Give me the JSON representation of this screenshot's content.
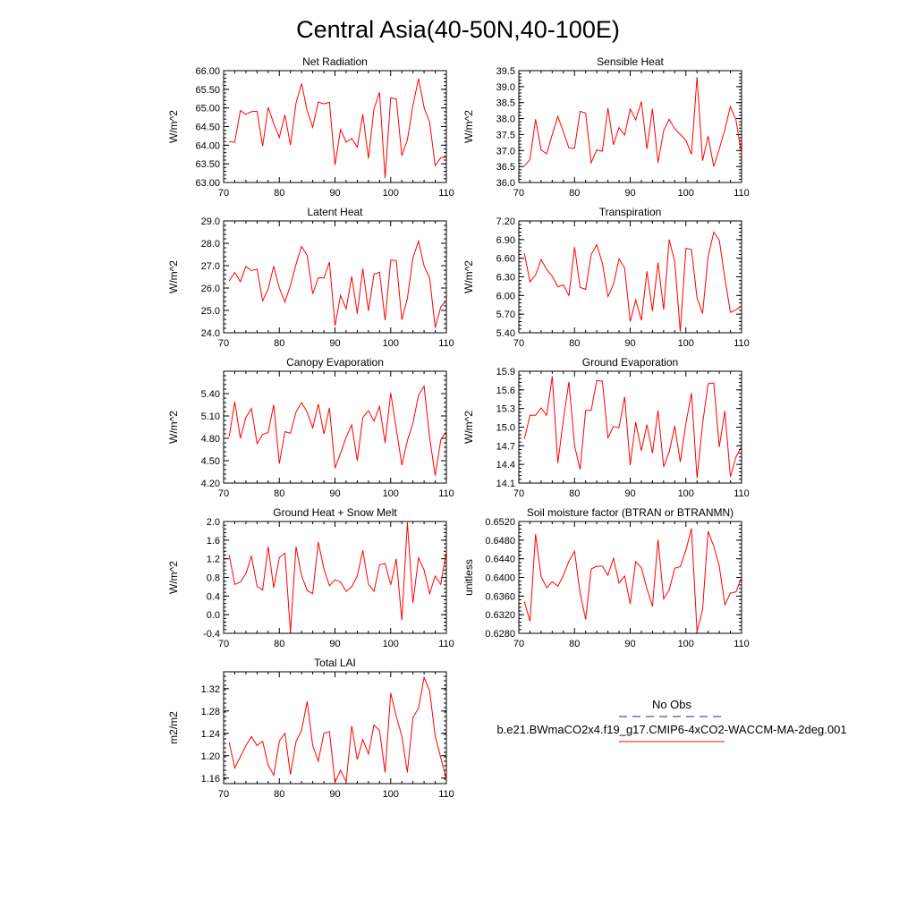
{
  "figure_title": "Central Asia(40-50N,40-100E)",
  "legend": {
    "obs_label": "No Obs",
    "obs_color": "#2222aa",
    "model_label": "b.e21.BWmaCO2x4.f19_g17.CMIP6-4xCO2-WACCM-MA-2deg.001",
    "model_color": "#ff0000"
  },
  "chart_data": [
    {
      "type": "line",
      "title": "Net Radiation",
      "ylabel": "W/m^2",
      "xlim": [
        70,
        110
      ],
      "ylim": [
        63.0,
        66.0
      ],
      "xticks": [
        "70",
        "80",
        "90",
        "100",
        "110"
      ],
      "yticks": [
        "63.00",
        "63.50",
        "64.00",
        "64.50",
        "65.00",
        "65.50",
        "66.00"
      ],
      "x_start": 71,
      "values": [
        64.1,
        64.08,
        64.93,
        64.83,
        64.9,
        64.91,
        63.97,
        65.02,
        64.58,
        64.21,
        64.82,
        64.0,
        65.13,
        65.66,
        64.92,
        64.48,
        65.16,
        65.11,
        65.15,
        63.47,
        64.42,
        64.08,
        64.18,
        63.95,
        64.83,
        63.64,
        64.98,
        65.42,
        63.12,
        65.27,
        65.24,
        63.72,
        64.14,
        65.06,
        65.79,
        65.01,
        64.62,
        63.45,
        63.67,
        63.68
      ]
    },
    {
      "type": "line",
      "title": "Sensible Heat",
      "ylabel": "W/m^2",
      "xlim": [
        70,
        110
      ],
      "ylim": [
        36.0,
        39.5
      ],
      "xticks": [
        "70",
        "80",
        "90",
        "100",
        "110"
      ],
      "yticks": [
        "36.0",
        "36.5",
        "37.0",
        "37.5",
        "38.0",
        "38.5",
        "39.0",
        "39.5"
      ],
      "x_start": 71,
      "values": [
        36.52,
        36.72,
        37.98,
        37.02,
        36.9,
        37.5,
        38.07,
        37.58,
        37.08,
        37.07,
        38.23,
        38.17,
        36.62,
        37.02,
        36.98,
        38.33,
        37.18,
        37.72,
        37.48,
        38.3,
        37.96,
        38.53,
        37.05,
        38.31,
        36.62,
        37.62,
        37.98,
        37.68,
        37.5,
        37.32,
        36.88,
        39.3,
        36.68,
        37.45,
        36.5,
        37.05,
        37.65,
        38.38,
        37.95,
        36.88
      ]
    },
    {
      "type": "line",
      "title": "Latent Heat",
      "ylabel": "W/m^2",
      "xlim": [
        70,
        110
      ],
      "ylim": [
        24.0,
        29.0
      ],
      "xticks": [
        "70",
        "80",
        "90",
        "100",
        "110"
      ],
      "yticks": [
        "24.0",
        "25.0",
        "26.0",
        "27.0",
        "28.0",
        "29.0"
      ],
      "x_start": 71,
      "values": [
        26.32,
        26.7,
        26.29,
        26.97,
        26.78,
        26.85,
        25.43,
        25.96,
        26.98,
        26.0,
        25.38,
        26.12,
        27.05,
        27.86,
        27.46,
        25.74,
        26.46,
        26.45,
        27.16,
        24.31,
        25.67,
        25.07,
        26.52,
        24.86,
        26.87,
        24.98,
        26.62,
        26.71,
        24.56,
        27.25,
        27.23,
        24.58,
        25.53,
        27.35,
        28.1,
        26.98,
        26.45,
        24.23,
        25.16,
        25.44
      ]
    },
    {
      "type": "line",
      "title": "Transpiration",
      "ylabel": "W/m^2",
      "xlim": [
        70,
        110
      ],
      "ylim": [
        5.4,
        7.2
      ],
      "xticks": [
        "70",
        "80",
        "90",
        "100",
        "110"
      ],
      "yticks": [
        "5.40",
        "5.70",
        "6.00",
        "6.30",
        "6.60",
        "6.90",
        "7.20"
      ],
      "x_start": 71,
      "values": [
        6.68,
        6.22,
        6.33,
        6.58,
        6.42,
        6.31,
        6.14,
        6.17,
        6.0,
        6.78,
        6.13,
        6.1,
        6.66,
        6.82,
        6.52,
        5.98,
        6.18,
        6.59,
        6.44,
        5.58,
        5.93,
        5.6,
        6.39,
        5.75,
        6.53,
        5.77,
        6.9,
        6.54,
        5.42,
        6.76,
        6.74,
        5.96,
        5.71,
        6.62,
        7.02,
        6.89,
        6.28,
        5.73,
        5.77,
        5.83
      ]
    },
    {
      "type": "line",
      "title": "Canopy Evaporation",
      "ylabel": "W/m^2",
      "xlim": [
        70,
        110
      ],
      "ylim": [
        4.2,
        5.7
      ],
      "xticks": [
        "70",
        "80",
        "90",
        "100",
        "110"
      ],
      "yticks": [
        "4.20",
        "4.50",
        "4.80",
        "5.10",
        "5.40"
      ],
      "x_start": 71,
      "values": [
        4.82,
        5.29,
        4.8,
        5.08,
        5.2,
        4.73,
        4.85,
        4.88,
        5.25,
        4.46,
        4.89,
        4.87,
        5.15,
        5.28,
        5.15,
        4.94,
        5.26,
        4.86,
        5.21,
        4.4,
        4.6,
        4.82,
        4.98,
        4.5,
        5.08,
        5.17,
        5.03,
        5.23,
        4.74,
        5.41,
        4.93,
        4.44,
        4.77,
        5.0,
        5.38,
        5.5,
        4.81,
        4.3,
        4.78,
        4.89
      ]
    },
    {
      "type": "line",
      "title": "Ground Evaporation",
      "ylabel": "W/m^2",
      "xlim": [
        70,
        110
      ],
      "ylim": [
        14.1,
        15.9
      ],
      "xticks": [
        "70",
        "80",
        "90",
        "100",
        "110"
      ],
      "yticks": [
        "14.1",
        "14.4",
        "14.7",
        "15.0",
        "15.3",
        "15.6",
        "15.9"
      ],
      "x_start": 71,
      "values": [
        14.81,
        15.19,
        15.19,
        15.31,
        15.19,
        15.82,
        14.42,
        15.12,
        15.73,
        14.7,
        14.32,
        15.27,
        15.27,
        15.75,
        15.74,
        14.83,
        15.01,
        14.99,
        15.49,
        14.39,
        15.08,
        14.62,
        15.04,
        14.58,
        15.27,
        14.36,
        14.6,
        15.02,
        14.44,
        15.06,
        15.55,
        14.18,
        15.05,
        15.7,
        15.71,
        14.68,
        15.26,
        14.2,
        14.52,
        14.69
      ]
    },
    {
      "type": "line",
      "title": "Ground Heat + Snow Melt",
      "ylabel": "W/m^2",
      "xlim": [
        70,
        110
      ],
      "ylim": [
        -0.4,
        2.0
      ],
      "xticks": [
        "70",
        "80",
        "90",
        "100",
        "110"
      ],
      "yticks": [
        "-0.4",
        "0.0",
        "0.4",
        "0.8",
        "1.2",
        "1.6",
        "2.0"
      ],
      "x_start": 71,
      "values": [
        1.28,
        0.65,
        0.7,
        0.88,
        1.26,
        0.61,
        0.53,
        1.46,
        0.58,
        1.23,
        1.32,
        -0.38,
        1.46,
        0.84,
        0.52,
        0.45,
        1.56,
        0.98,
        0.62,
        0.75,
        0.7,
        0.5,
        0.6,
        0.83,
        1.38,
        0.65,
        0.5,
        1.07,
        1.1,
        0.64,
        1.2,
        -0.12,
        1.98,
        0.25,
        1.22,
        0.96,
        0.45,
        0.83,
        0.65,
        1.37
      ]
    },
    {
      "type": "line",
      "title": "Soil moisture factor (BTRAN or BTRANMN)",
      "ylabel": "unitless",
      "xlim": [
        70,
        110
      ],
      "ylim": [
        0.628,
        0.652
      ],
      "xticks": [
        "70",
        "80",
        "90",
        "100",
        "110"
      ],
      "yticks": [
        "0.6280",
        "0.6320",
        "0.6360",
        "0.6400",
        "0.6440",
        "0.6480",
        "0.6520"
      ],
      "x_start": 71,
      "values": [
        0.6348,
        0.6306,
        0.6493,
        0.6402,
        0.6378,
        0.6391,
        0.6381,
        0.6404,
        0.6435,
        0.6456,
        0.6366,
        0.631,
        0.6418,
        0.6424,
        0.6424,
        0.6405,
        0.6441,
        0.6388,
        0.6403,
        0.6343,
        0.6434,
        0.6421,
        0.6376,
        0.6338,
        0.6481,
        0.6354,
        0.6373,
        0.642,
        0.6423,
        0.6459,
        0.6505,
        0.6284,
        0.633,
        0.6499,
        0.6467,
        0.6424,
        0.6341,
        0.6366,
        0.6369,
        0.64
      ]
    },
    {
      "type": "line",
      "title": "Total LAI",
      "ylabel": "m2/m2",
      "xlim": [
        70,
        110
      ],
      "ylim": [
        1.15,
        1.35
      ],
      "xticks": [
        "70",
        "80",
        "90",
        "100",
        "110"
      ],
      "yticks": [
        "1.16",
        "1.20",
        "1.24",
        "1.28",
        "1.32"
      ],
      "x_start": 71,
      "values": [
        1.224,
        1.178,
        1.198,
        1.218,
        1.234,
        1.218,
        1.226,
        1.183,
        1.165,
        1.226,
        1.24,
        1.166,
        1.225,
        1.245,
        1.297,
        1.218,
        1.19,
        1.24,
        1.243,
        1.152,
        1.174,
        1.153,
        1.253,
        1.193,
        1.229,
        1.203,
        1.255,
        1.245,
        1.17,
        1.312,
        1.27,
        1.235,
        1.17,
        1.268,
        1.285,
        1.34,
        1.316,
        1.235,
        1.196,
        1.157
      ]
    }
  ]
}
